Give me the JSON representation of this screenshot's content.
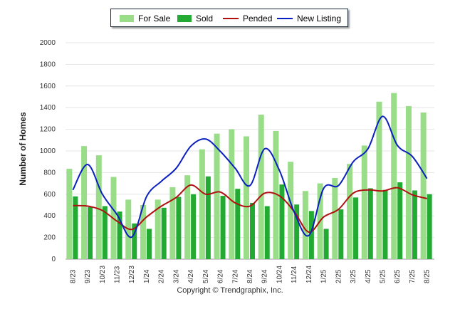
{
  "legend": {
    "for_sale": "For Sale",
    "sold": "Sold",
    "pended": "Pended",
    "new_listing": "New Listing"
  },
  "footer": {
    "copyright": "Copyright © Trendgraphix, Inc."
  },
  "chart_data": {
    "type": "bar",
    "title": "",
    "xlabel": "",
    "ylabel": "Number of Homes",
    "ylim": [
      0,
      2000
    ],
    "yticks": [
      0,
      200,
      400,
      600,
      800,
      1000,
      1200,
      1400,
      1600,
      1800,
      2000
    ],
    "grid": true,
    "legend_position": "top",
    "categories": [
      "8/23",
      "9/23",
      "10/23",
      "11/23",
      "12/23",
      "1/24",
      "2/24",
      "3/24",
      "4/24",
      "5/24",
      "6/24",
      "7/24",
      "8/24",
      "9/24",
      "10/24",
      "11/24",
      "12/24",
      "1/25",
      "2/25",
      "3/25",
      "4/25",
      "5/25",
      "6/25",
      "7/25",
      "8/25"
    ],
    "series": [
      {
        "name": "For Sale",
        "kind": "bar",
        "color": "#99dd88",
        "values": [
          835,
          1045,
          960,
          760,
          550,
          500,
          550,
          665,
          775,
          1015,
          1160,
          1200,
          1135,
          1335,
          1185,
          900,
          630,
          700,
          750,
          880,
          1050,
          1455,
          1535,
          1415,
          1355
        ]
      },
      {
        "name": "Sold",
        "kind": "bar",
        "color": "#22aa33",
        "values": [
          580,
          480,
          490,
          440,
          330,
          280,
          475,
          575,
          600,
          765,
          585,
          650,
          520,
          490,
          690,
          505,
          445,
          280,
          460,
          570,
          655,
          640,
          710,
          635,
          600
        ]
      },
      {
        "name": "Pended",
        "kind": "line",
        "color": "#b01010",
        "values": [
          495,
          490,
          450,
          350,
          275,
          390,
          490,
          570,
          685,
          600,
          620,
          520,
          490,
          610,
          585,
          440,
          250,
          390,
          460,
          610,
          640,
          630,
          660,
          595,
          560
        ]
      },
      {
        "name": "New Listing",
        "kind": "line",
        "color": "#0a1fbf",
        "values": [
          640,
          875,
          600,
          410,
          205,
          580,
          720,
          840,
          1045,
          1110,
          995,
          840,
          680,
          1020,
          820,
          435,
          220,
          655,
          680,
          900,
          1020,
          1320,
          1050,
          950,
          745
        ]
      }
    ]
  }
}
